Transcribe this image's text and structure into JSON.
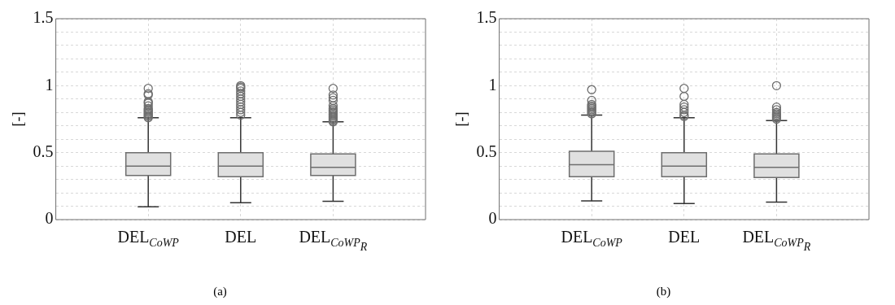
{
  "chart_data": [
    {
      "type": "box",
      "ylabel": "[-]",
      "categories": [
        "DEL$_{CoWP}$",
        "DEL",
        "DEL$_{CoWP}$$_{R}$"
      ],
      "ylim": [
        0,
        1.5
      ],
      "yticks": [
        0,
        {
          "value": 0.1,
          "label": null
        },
        {
          "value": 0.2,
          "label": null
        },
        {
          "value": 0.3,
          "label": null
        },
        {
          "value": 0.4,
          "label": null
        },
        0.5,
        {
          "value": 0.6,
          "label": null
        },
        {
          "value": 0.7,
          "label": null
        },
        {
          "value": 0.8,
          "label": null
        },
        {
          "value": 0.9,
          "label": null
        },
        1,
        {
          "value": 1.1,
          "label": null
        },
        {
          "value": 1.2,
          "label": null
        },
        {
          "value": 1.3,
          "label": null
        },
        {
          "value": 1.4,
          "label": null
        },
        1.5
      ],
      "grid": true,
      "color": "#e0e0e0",
      "annotations": [
        "(a)"
      ],
      "boxes": [
        {
          "low": 0.095,
          "q1": 0.33,
          "median": 0.4,
          "q3": 0.5,
          "high": 0.76,
          "outliers": [
            0.76,
            0.77,
            0.78,
            0.79,
            0.8,
            0.81,
            0.82,
            0.83,
            0.85,
            0.87,
            0.88,
            0.93,
            0.94,
            0.98
          ]
        },
        {
          "low": 0.126,
          "q1": 0.32,
          "median": 0.4,
          "q3": 0.5,
          "high": 0.76,
          "outliers": [
            0.78,
            0.8,
            0.82,
            0.84,
            0.86,
            0.88,
            0.9,
            0.92,
            0.94,
            0.96,
            0.98,
            0.99,
            1.0
          ]
        },
        {
          "low": 0.137,
          "q1": 0.33,
          "median": 0.39,
          "q3": 0.49,
          "high": 0.73,
          "outliers": [
            0.73,
            0.74,
            0.75,
            0.76,
            0.77,
            0.78,
            0.79,
            0.8,
            0.81,
            0.82,
            0.83,
            0.85,
            0.89,
            0.91,
            0.93,
            0.98
          ]
        }
      ]
    },
    {
      "type": "box",
      "ylabel": "[-]",
      "categories": [
        "DEL$_{CoWP}$",
        "DEL",
        "DEL$_{CoWP}$$_{R}$"
      ],
      "ylim": [
        0,
        1.5
      ],
      "yticks": [
        0,
        {
          "value": 0.1,
          "label": null
        },
        {
          "value": 0.2,
          "label": null
        },
        {
          "value": 0.3,
          "label": null
        },
        {
          "value": 0.4,
          "label": null
        },
        0.5,
        {
          "value": 0.6,
          "label": null
        },
        {
          "value": 0.7,
          "label": null
        },
        {
          "value": 0.8,
          "label": null
        },
        {
          "value": 0.9,
          "label": null
        },
        1,
        {
          "value": 1.1,
          "label": null
        },
        {
          "value": 1.2,
          "label": null
        },
        {
          "value": 1.3,
          "label": null
        },
        {
          "value": 1.4,
          "label": null
        },
        1.5
      ],
      "grid": true,
      "color": "#e0e0e0",
      "annotations": [
        "(b)"
      ],
      "boxes": [
        {
          "low": 0.14,
          "q1": 0.32,
          "median": 0.41,
          "q3": 0.51,
          "high": 0.78,
          "outliers": [
            0.79,
            0.8,
            0.81,
            0.82,
            0.83,
            0.84,
            0.85,
            0.86,
            0.89,
            0.97
          ]
        },
        {
          "low": 0.12,
          "q1": 0.32,
          "median": 0.4,
          "q3": 0.5,
          "high": 0.76,
          "outliers": [
            0.77,
            0.78,
            0.8,
            0.82,
            0.84,
            0.86,
            0.92,
            0.98
          ]
        },
        {
          "low": 0.13,
          "q1": 0.315,
          "median": 0.39,
          "q3": 0.49,
          "high": 0.74,
          "outliers": [
            0.75,
            0.76,
            0.77,
            0.78,
            0.79,
            0.8,
            0.82,
            0.84,
            1.0
          ]
        }
      ]
    }
  ]
}
